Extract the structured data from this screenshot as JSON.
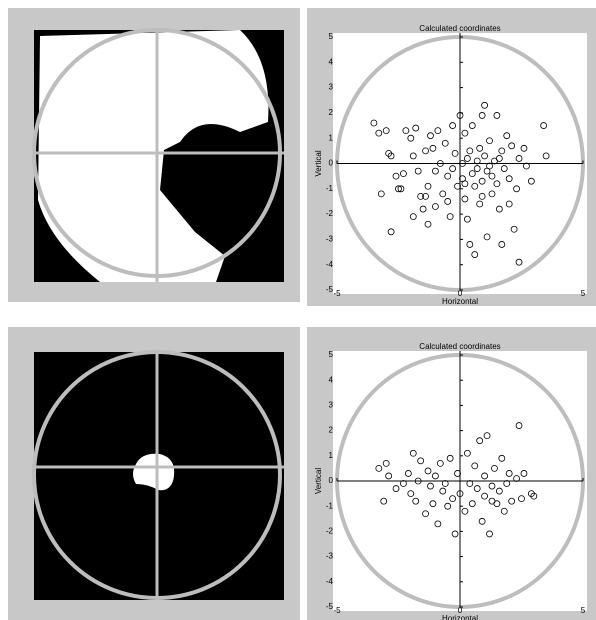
{
  "chart_data": [
    {
      "type": "scatter",
      "title": "Calculated coordinates",
      "xlabel": "Horizontal",
      "ylabel": "Vertical",
      "xlim": [
        -5,
        5
      ],
      "ylim": [
        -5,
        5
      ],
      "xticks": [
        -5,
        0,
        5
      ],
      "yticks": [
        -5,
        -4,
        -3,
        -2,
        -1,
        0,
        1,
        2,
        3,
        4,
        5
      ],
      "color": "#000000",
      "x": [
        -3.5,
        -3.3,
        -3.0,
        -2.9,
        -2.8,
        -2.8,
        -3.2,
        -2.6,
        -2.5,
        -2.3,
        -2.4,
        -2.2,
        -2.0,
        -1.8,
        -1.9,
        -1.7,
        -1.9,
        -1.6,
        -1.5,
        -1.4,
        -1.3,
        -1.3,
        -1.2,
        -1.1,
        -1.0,
        -1.0,
        -0.9,
        -0.8,
        -0.7,
        -0.6,
        -0.5,
        -0.4,
        -0.3,
        -0.3,
        -0.2,
        -0.1,
        0.0,
        0.1,
        0.2,
        0.2,
        0.3,
        0.3,
        0.4,
        0.5,
        0.5,
        0.6,
        0.6,
        0.7,
        0.7,
        0.8,
        0.8,
        0.9,
        0.9,
        1.0,
        1.0,
        1.1,
        1.1,
        1.2,
        1.3,
        1.3,
        1.4,
        1.5,
        1.5,
        1.6,
        1.7,
        1.7,
        1.8,
        1.9,
        2.0,
        2.0,
        2.1,
        2.2,
        2.3,
        2.4,
        2.4,
        2.6,
        2.7,
        2.9,
        3.4,
        3.5,
        0.4,
        0.2,
        1.2,
        -0.5,
        0.9,
        1.6,
        -1.4,
        0.1
      ],
      "y": [
        1.6,
        1.2,
        1.3,
        0.4,
        0.3,
        -2.7,
        -1.2,
        -0.5,
        -1.0,
        -0.4,
        -1.0,
        1.3,
        1.0,
        1.4,
        0.3,
        -0.3,
        -2.1,
        -1.3,
        -1.8,
        -1.3,
        -0.9,
        -2.4,
        1.1,
        0.6,
        -0.3,
        -1.7,
        1.3,
        0.0,
        -1.2,
        0.8,
        -0.5,
        -2.1,
        1.5,
        -0.2,
        0.4,
        -0.9,
        1.9,
        -0.6,
        1.2,
        -1.4,
        0.2,
        -2.2,
        -3.2,
        -0.4,
        1.5,
        -0.9,
        -3.6,
        0.1,
        -0.2,
        0.6,
        -1.6,
        1.9,
        -0.7,
        2.3,
        0.3,
        -0.3,
        -2.9,
        0.9,
        -0.5,
        -1.2,
        0.1,
        1.9,
        -0.8,
        -1.8,
        0.5,
        -3.2,
        -0.2,
        1.1,
        -0.6,
        -1.6,
        0.7,
        -2.6,
        -1.0,
        -3.9,
        0.2,
        0.6,
        -0.1,
        -0.7,
        1.5,
        0.3,
        0.5,
        -0.8,
        -0.1,
        -1.5,
        -1.3,
        0.2,
        0.5,
        0.0
      ]
    },
    {
      "type": "scatter",
      "title": "Calculated coordinates",
      "xlabel": "Horizontal",
      "ylabel": "Vertical",
      "xlim": [
        -5,
        5
      ],
      "ylim": [
        -5,
        5
      ],
      "xticks": [
        -5,
        0,
        5
      ],
      "yticks": [
        -5,
        -4,
        -3,
        -2,
        -1,
        0,
        1,
        2,
        3,
        4,
        5
      ],
      "color": "#000000",
      "x": [
        -3.3,
        -3.1,
        -3.0,
        -2.9,
        -2.6,
        -2.3,
        -2.1,
        -1.9,
        -1.8,
        -1.7,
        -1.6,
        -1.4,
        -1.3,
        -1.2,
        -1.1,
        -1.0,
        -0.9,
        -0.8,
        -0.7,
        -0.6,
        -0.4,
        -0.3,
        -0.2,
        -0.1,
        0.0,
        0.2,
        0.3,
        0.4,
        0.5,
        0.6,
        0.7,
        0.8,
        0.9,
        1.0,
        1.0,
        1.1,
        1.2,
        1.3,
        1.4,
        1.5,
        1.6,
        1.7,
        1.8,
        1.9,
        2.0,
        2.1,
        2.3,
        2.4,
        2.5,
        2.6,
        2.9,
        3.0,
        -0.5,
        1.3,
        -2.0
      ],
      "y": [
        0.5,
        -0.8,
        0.7,
        0.2,
        -0.3,
        -0.1,
        0.3,
        1.1,
        -0.8,
        0.0,
        0.8,
        -1.3,
        0.4,
        -0.2,
        -0.9,
        0.2,
        -1.7,
        0.7,
        -0.4,
        -0.1,
        0.9,
        -0.7,
        -2.1,
        0.3,
        -0.5,
        -1.2,
        1.1,
        -0.1,
        -0.9,
        0.6,
        -0.3,
        1.6,
        -1.6,
        0.2,
        -0.6,
        1.8,
        -2.1,
        -0.2,
        0.5,
        -0.9,
        -0.4,
        0.9,
        -1.2,
        -0.1,
        0.3,
        -0.8,
        0.1,
        2.2,
        -0.7,
        0.3,
        -0.5,
        -0.6,
        -1.0,
        -0.8,
        -0.5
      ]
    }
  ]
}
